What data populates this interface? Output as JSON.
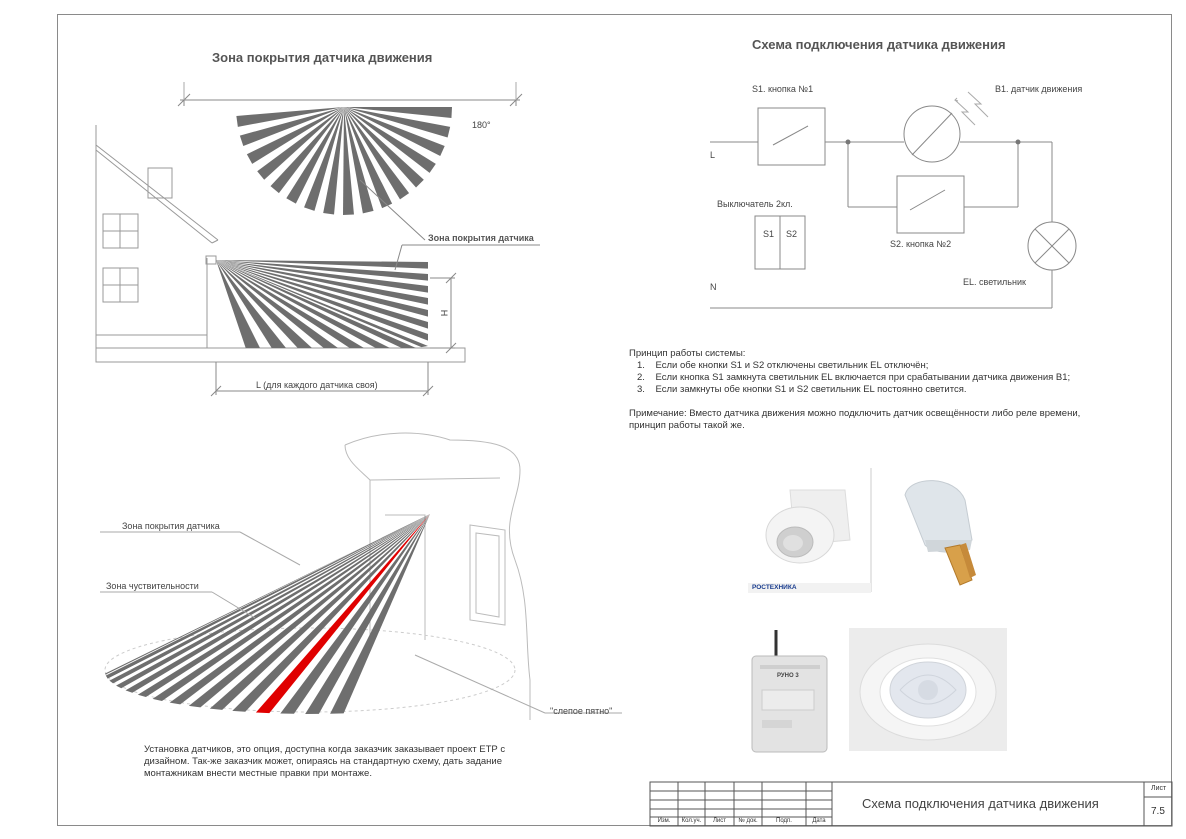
{
  "coverage": {
    "title": "Зона покрытия датчика движения",
    "angle_label": "180°",
    "zone_label": "Зона покрытия датчика",
    "height_label": "H",
    "length_label": "L (для каждого датчика своя)"
  },
  "perspective": {
    "zone_label": "Зона покрытия датчика",
    "sensitivity_label": "Зона чуствительности",
    "blind_spot_label": "\"слепое пятно\""
  },
  "wiring": {
    "title": "Схема подключения датчика движения",
    "s1_label": "S1. кнопка №1",
    "b1_label": "B1. датчик движения",
    "l_label": "L",
    "n_label": "N",
    "switch_label": "Выключатель 2кл.",
    "s1_key": "S1",
    "s2_key": "S2",
    "s2_label": "S2. кнопка №2",
    "el_label": "EL. светильник"
  },
  "principle": {
    "heading": "Принцип работы системы:",
    "items": [
      {
        "num": "1.",
        "text": "Если обе кнопки S1 и S2 отключены светильник EL отключён;"
      },
      {
        "num": "2.",
        "text": "Если кнопка S1 замкнута светильник EL включается при срабатывании датчика движения В1;"
      },
      {
        "num": "3.",
        "text": "Если замкнуты обе кнопки S1 и S2 светильник EL постоянно светится."
      }
    ],
    "note_line1": "Примечание: Вместо датчика движения можно подключить датчик освещённости либо реле времени,",
    "note_line2": "принцип работы такой же."
  },
  "install_note": {
    "line1": "Установка датчиков, это опция, доступна когда заказчик заказывает проект ЕТР с",
    "line2": "дизайном. Так-же заказчик может, опираясь на стандартную схему, дать задание",
    "line3": "монтажникам внести местные правки при монтаже."
  },
  "photos": {
    "brand": "РОСТЕХНИКА",
    "device_label": "РУНО 3"
  },
  "stamp": {
    "title": "Схема подключения датчика движения",
    "sheet_label": "Лист",
    "sheet_number": "7.5",
    "cols": [
      "Изм.",
      "Кол.уч.",
      "Лист",
      "№ док.",
      "Подп.",
      "Дата"
    ]
  }
}
